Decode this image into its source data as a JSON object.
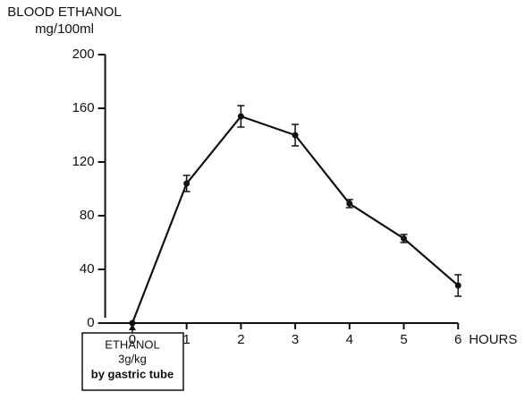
{
  "chart_data": {
    "type": "line",
    "ylabel": [
      "BLOOD ETHANOL",
      "mg/100ml"
    ],
    "xlabel": "HOURS",
    "x": [
      0,
      1,
      2,
      3,
      4,
      5,
      6
    ],
    "series": [
      {
        "color": "#111111",
        "values": [
          0,
          104,
          154,
          140,
          89,
          63,
          28
        ],
        "errors": [
          null,
          6,
          8,
          8,
          3,
          3,
          8
        ]
      }
    ],
    "xlim": [
      -0.5,
      6
    ],
    "xticks": [
      0,
      1,
      2,
      3,
      4,
      5,
      6
    ],
    "ylim": [
      0,
      200
    ],
    "yticks": [
      0,
      40,
      80,
      120,
      160,
      200
    ],
    "annotation": [
      "ETHANOL",
      "3g/kg",
      "by gastric tube"
    ]
  }
}
